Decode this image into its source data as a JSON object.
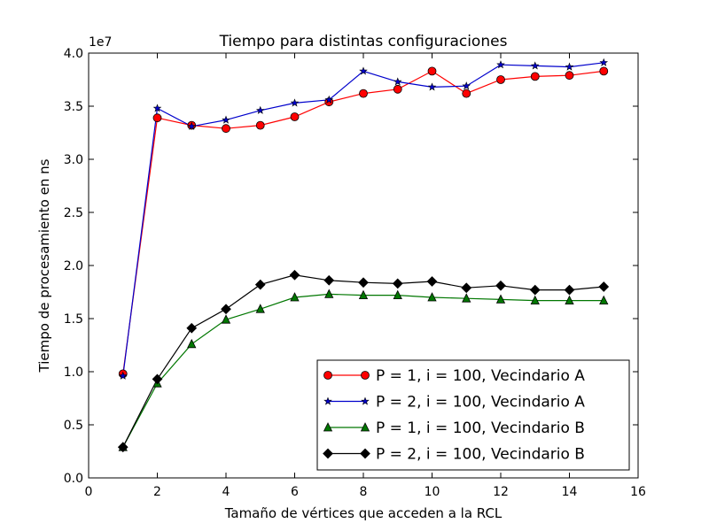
{
  "chart_data": {
    "type": "line",
    "title": "Tiempo para distintas configuraciones",
    "xlabel": "Tamaño de vértices que acceden a la RCL",
    "ylabel": "Tiempo de procesamiento en ns",
    "y_offset_label": "1e7",
    "xlim": [
      0,
      16
    ],
    "ylim": [
      0.0,
      4.0
    ],
    "x_ticks": [
      0,
      2,
      4,
      6,
      8,
      10,
      12,
      14,
      16
    ],
    "y_ticks": [
      0.0,
      0.5,
      1.0,
      1.5,
      2.0,
      2.5,
      3.0,
      3.5,
      4.0
    ],
    "x_tick_labels": [
      "0",
      "2",
      "4",
      "6",
      "8",
      "10",
      "12",
      "14",
      "16"
    ],
    "y_tick_labels": [
      "0.0",
      "0.5",
      "1.0",
      "1.5",
      "2.0",
      "2.5",
      "3.0",
      "3.5",
      "4.0"
    ],
    "legend_position": "lower-right",
    "grid": false,
    "x": [
      1,
      2,
      3,
      4,
      5,
      6,
      7,
      8,
      9,
      10,
      11,
      12,
      13,
      14,
      15
    ],
    "series": [
      {
        "name": "P = 1, i = 100, Vecindario A",
        "color": "#ff0000",
        "marker": "circle",
        "values": [
          0.98,
          3.39,
          3.32,
          3.29,
          3.32,
          3.4,
          3.54,
          3.62,
          3.66,
          3.83,
          3.62,
          3.75,
          3.78,
          3.79,
          3.83
        ]
      },
      {
        "name": "P = 2, i = 100, Vecindario A",
        "color": "#0000cc",
        "marker": "star",
        "values": [
          0.96,
          3.48,
          3.31,
          3.37,
          3.46,
          3.53,
          3.56,
          3.83,
          3.73,
          3.68,
          3.69,
          3.89,
          3.88,
          3.87,
          3.91
        ]
      },
      {
        "name": "P = 1, i = 100, Vecindario B",
        "color": "#007700",
        "marker": "triangle",
        "values": [
          0.29,
          0.89,
          1.26,
          1.49,
          1.59,
          1.7,
          1.73,
          1.72,
          1.72,
          1.7,
          1.69,
          1.68,
          1.67,
          1.67,
          1.67
        ]
      },
      {
        "name": "P = 2, i = 100, Vecindario B",
        "color": "#000000",
        "marker": "diamond",
        "values": [
          0.29,
          0.93,
          1.41,
          1.59,
          1.82,
          1.91,
          1.86,
          1.84,
          1.83,
          1.85,
          1.79,
          1.81,
          1.77,
          1.77,
          1.8
        ]
      }
    ]
  }
}
